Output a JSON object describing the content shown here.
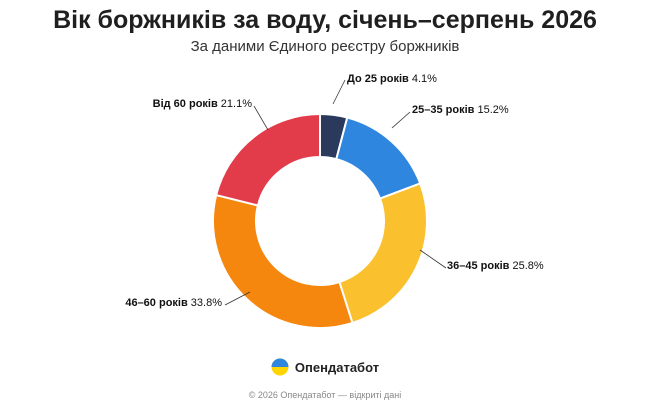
{
  "header": {
    "title": "Вік боржників за воду, січень–серпень 2026",
    "subtitle": "За даними Єдиного реєстру боржників"
  },
  "chart_data": {
    "type": "pie",
    "title": "Вік боржників за воду, січень–серпень 2026",
    "subtitle": "За даними Єдиного реєстру боржників",
    "categories": [
      "До 25 років",
      "25–35 років",
      "36–45 років",
      "46–60 років",
      "Від 60 років"
    ],
    "values": [
      4.1,
      15.2,
      25.8,
      33.8,
      21.1
    ],
    "value_labels": [
      "4.1%",
      "15.2%",
      "25.8%",
      "33.8%",
      "21.1%"
    ],
    "colors": [
      "#2b3a5c",
      "#2e86de",
      "#fbc02d",
      "#f5870f",
      "#e23b4a"
    ],
    "donut": true,
    "legend": "none"
  },
  "brand": {
    "name": "Опендатабот",
    "icon": "opendatabot-logo-icon"
  },
  "footer": {
    "text": "© 2026 Опендатабот — відкриті дані"
  }
}
